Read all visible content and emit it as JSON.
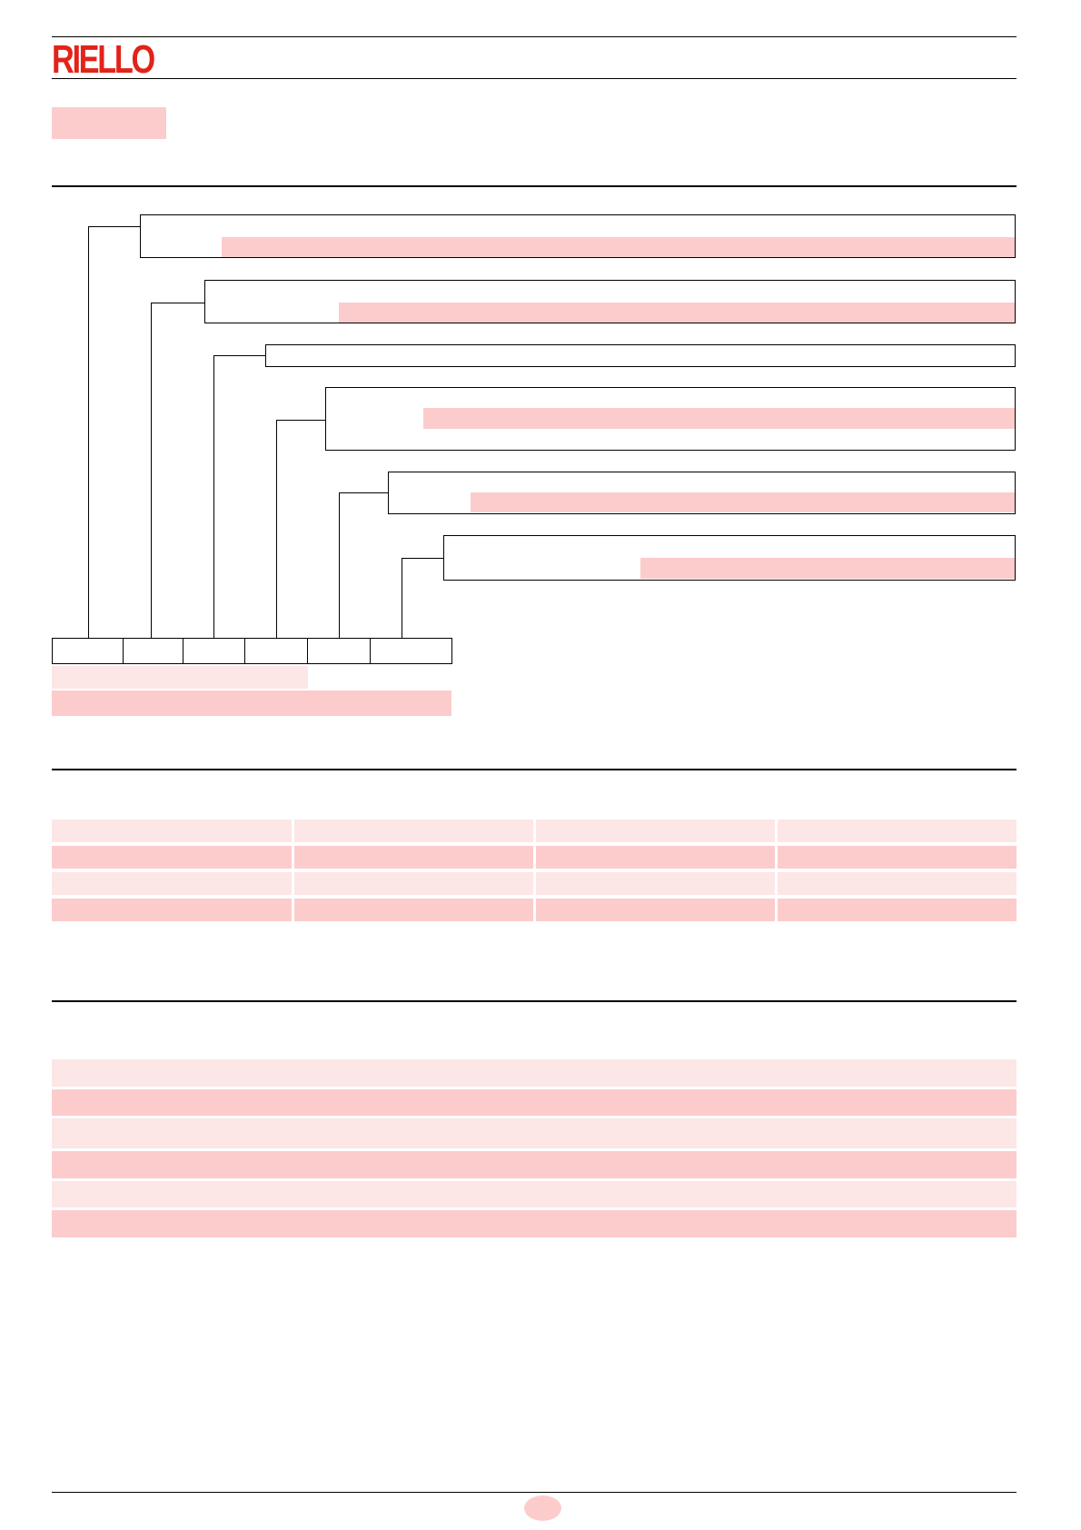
{
  "header": {
    "brand": "RIELLO",
    "brand_color": "#e2231a"
  },
  "colors": {
    "highlight": "#fccccc",
    "highlight_light": "#fde6e6",
    "line": "#000000"
  },
  "designation": {
    "boxes": 6,
    "code_segments": 6
  },
  "table1": {
    "columns": 4,
    "rows": 4
  },
  "table2": {
    "rows": 6
  }
}
